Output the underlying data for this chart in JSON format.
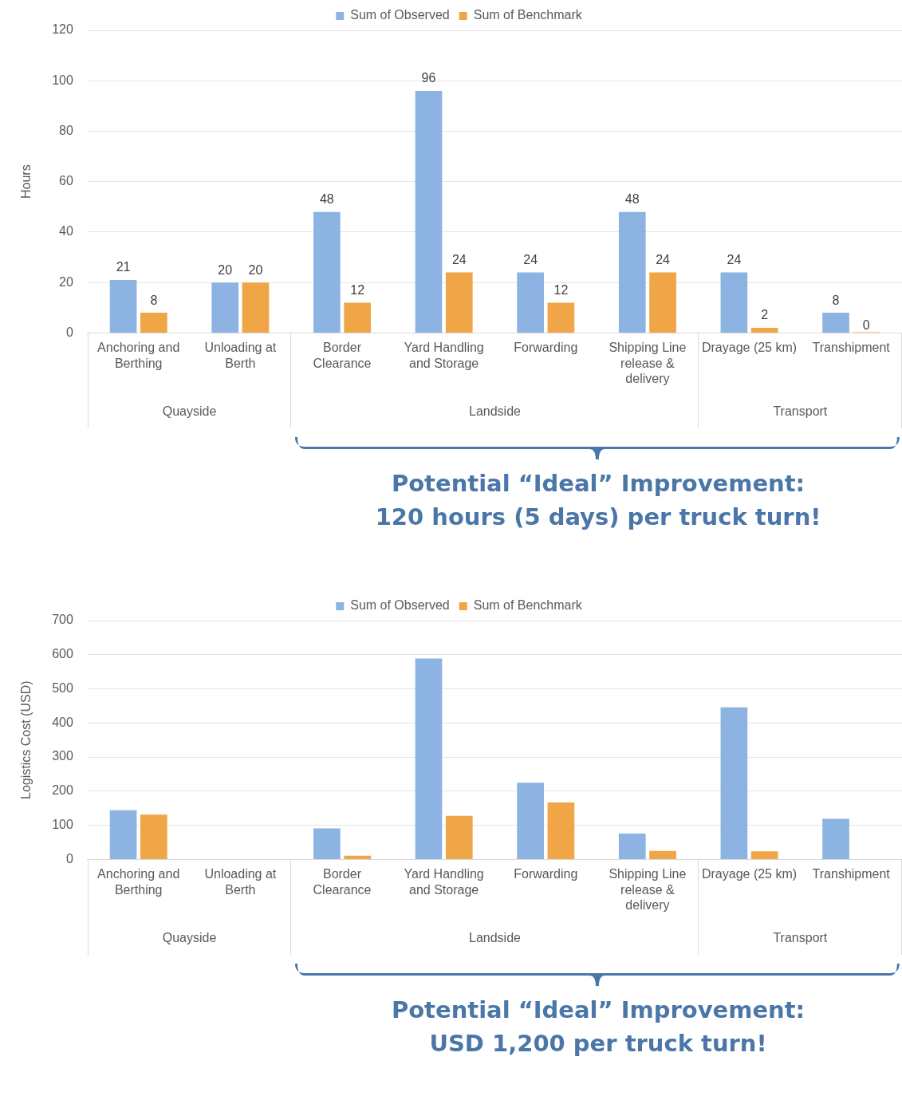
{
  "chart_data": [
    {
      "type": "bar",
      "ylabel": "Hours",
      "categories": [
        "Anchoring and Berthing",
        "Unloading at Berth",
        "Border Clearance",
        "Yard Handling and Storage",
        "Forwarding",
        "Shipping Line release & delivery",
        "Drayage (25 km)",
        "Transhipment"
      ],
      "series": [
        {
          "name": "Sum of Observed",
          "color": "#8db3e2",
          "values": [
            21,
            20,
            48,
            96,
            24,
            48,
            24,
            8
          ]
        },
        {
          "name": "Sum of Benchmark",
          "color": "#f0a646",
          "values": [
            8,
            20,
            12,
            24,
            12,
            24,
            2,
            0
          ]
        }
      ],
      "ylim": [
        0,
        120
      ],
      "yticks": [
        0,
        20,
        40,
        60,
        80,
        100,
        120
      ],
      "grid": "y",
      "legend": "top",
      "data_labels": true,
      "annotations": [
        "Quayside",
        "Landside",
        "Transport",
        "Potential “Ideal” Improvement:\n120 hours (5 days) per truck turn!"
      ]
    },
    {
      "type": "bar",
      "ylabel": "Logistics Cost (USD)",
      "categories": [
        "Anchoring and Berthing",
        "Unloading at Berth",
        "Border Clearance",
        "Yard Handling and Storage",
        "Forwarding",
        "Shipping Line release & delivery",
        "Drayage (25 km)",
        "Transhipment"
      ],
      "series": [
        {
          "name": "Sum of Observed",
          "color": "#8db3e2",
          "values": [
            144,
            null,
            91,
            589,
            225,
            76,
            446,
            119
          ]
        },
        {
          "name": "Sum of Benchmark",
          "color": "#f0a646",
          "values": [
            131,
            null,
            11,
            128,
            167,
            25,
            24,
            null
          ]
        }
      ],
      "ylim": [
        0,
        700
      ],
      "yticks": [
        0,
        100,
        200,
        300,
        400,
        500,
        600,
        700
      ],
      "grid": "y",
      "legend": "top",
      "annotations": [
        "Quayside",
        "Landside",
        "Transport",
        "Potential “Ideal” Improvement:\nUSD 1,200 per truck turn!"
      ]
    }
  ]
}
